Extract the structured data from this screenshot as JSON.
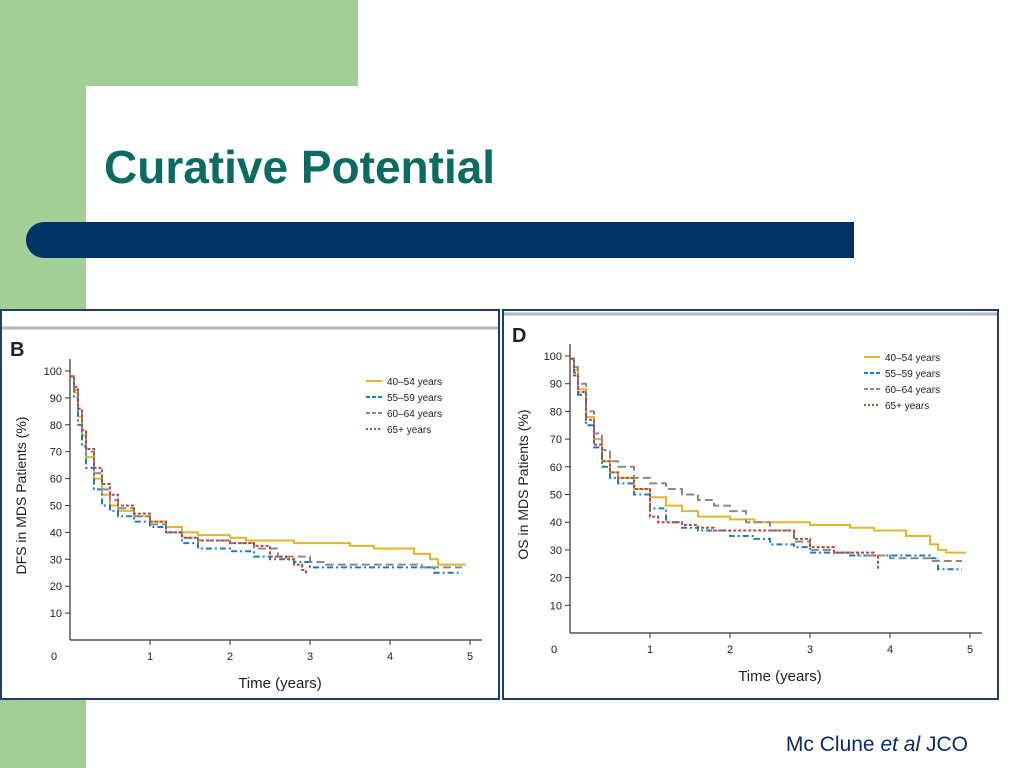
{
  "slide": {
    "title": "Curative Potential",
    "citation_author": "Mc Clune",
    "citation_etal": "et al",
    "citation_journal": "JCO"
  },
  "colors": {
    "title": "#0b6b62",
    "rule": "#003366",
    "accent_green": "#a2cf96",
    "citation": "#0a2a6e"
  },
  "chart_data": [
    {
      "type": "line",
      "panel_label": "B",
      "xlabel": "Time (years)",
      "ylabel": "DFS in MDS Patients (%)",
      "xlim": [
        0,
        5
      ],
      "ylim": [
        0,
        100
      ],
      "xticks": [
        0,
        1,
        2,
        3,
        4,
        5
      ],
      "yticks": [
        10,
        20,
        30,
        40,
        50,
        60,
        70,
        80,
        90,
        100
      ],
      "legend_position": "top-right",
      "series": [
        {
          "name": "40–54 years",
          "color": "#e3b52b",
          "dash": "solid",
          "points": [
            [
              0,
              98
            ],
            [
              0.05,
              92
            ],
            [
              0.1,
              83
            ],
            [
              0.15,
              76
            ],
            [
              0.2,
              68
            ],
            [
              0.3,
              60
            ],
            [
              0.4,
              54
            ],
            [
              0.5,
              50
            ],
            [
              0.6,
              48
            ],
            [
              0.8,
              46
            ],
            [
              1.0,
              44
            ],
            [
              1.2,
              42
            ],
            [
              1.4,
              40
            ],
            [
              1.6,
              39
            ],
            [
              2.0,
              38
            ],
            [
              2.2,
              37
            ],
            [
              2.6,
              37
            ],
            [
              2.8,
              36
            ],
            [
              3.5,
              35
            ],
            [
              3.8,
              34
            ],
            [
              4.3,
              32
            ],
            [
              4.5,
              30
            ],
            [
              4.6,
              28
            ],
            [
              4.95,
              28
            ]
          ]
        },
        {
          "name": "55–59 years",
          "color": "#1c7cc0",
          "dash": "6,3,2,3",
          "points": [
            [
              0,
              98
            ],
            [
              0.05,
              90
            ],
            [
              0.1,
              80
            ],
            [
              0.15,
              72
            ],
            [
              0.2,
              64
            ],
            [
              0.3,
              56
            ],
            [
              0.4,
              50
            ],
            [
              0.5,
              48
            ],
            [
              0.6,
              46
            ],
            [
              0.8,
              44
            ],
            [
              1.0,
              42
            ],
            [
              1.2,
              40
            ],
            [
              1.4,
              36
            ],
            [
              1.6,
              34
            ],
            [
              2.0,
              33
            ],
            [
              2.3,
              31
            ],
            [
              2.5,
              30
            ],
            [
              2.8,
              29
            ],
            [
              3.0,
              27
            ],
            [
              3.5,
              27
            ],
            [
              4.0,
              27
            ],
            [
              4.5,
              27
            ],
            [
              4.55,
              25
            ],
            [
              4.9,
              25
            ]
          ]
        },
        {
          "name": "60–64 years",
          "color": "#8a8a8a",
          "dash": "8,4",
          "points": [
            [
              0,
              98
            ],
            [
              0.05,
              93
            ],
            [
              0.1,
              85
            ],
            [
              0.15,
              77
            ],
            [
              0.2,
              70
            ],
            [
              0.3,
              62
            ],
            [
              0.4,
              56
            ],
            [
              0.5,
              52
            ],
            [
              0.6,
              49
            ],
            [
              0.8,
              46
            ],
            [
              1.0,
              43
            ],
            [
              1.2,
              40
            ],
            [
              1.4,
              38
            ],
            [
              1.6,
              37
            ],
            [
              2.0,
              36
            ],
            [
              2.3,
              34
            ],
            [
              2.6,
              31
            ],
            [
              3.0,
              29
            ],
            [
              3.2,
              28
            ],
            [
              3.8,
              28
            ],
            [
              4.4,
              27
            ],
            [
              4.9,
              27
            ]
          ]
        },
        {
          "name": "65+ years",
          "color": "#b04d40",
          "dash": "3,2",
          "points": [
            [
              0,
              98
            ],
            [
              0.05,
              94
            ],
            [
              0.1,
              86
            ],
            [
              0.15,
              78
            ],
            [
              0.2,
              71
            ],
            [
              0.3,
              64
            ],
            [
              0.4,
              58
            ],
            [
              0.5,
              54
            ],
            [
              0.6,
              50
            ],
            [
              0.8,
              47
            ],
            [
              1.0,
              44
            ],
            [
              1.2,
              40
            ],
            [
              1.4,
              38
            ],
            [
              1.6,
              37
            ],
            [
              2.0,
              36
            ],
            [
              2.3,
              35
            ],
            [
              2.5,
              31
            ],
            [
              2.7,
              30
            ],
            [
              2.8,
              28
            ],
            [
              2.9,
              26
            ],
            [
              2.95,
              24
            ]
          ]
        }
      ]
    },
    {
      "type": "line",
      "panel_label": "D",
      "xlabel": "Time (years)",
      "ylabel": "OS in MDS Patients (%)",
      "xlim": [
        0,
        5
      ],
      "ylim": [
        0,
        100
      ],
      "xticks": [
        0,
        1,
        2,
        3,
        4,
        5
      ],
      "yticks": [
        10,
        20,
        30,
        40,
        50,
        60,
        70,
        80,
        90,
        100
      ],
      "legend_position": "top-right",
      "series": [
        {
          "name": "40–54 years",
          "color": "#e3b52b",
          "dash": "solid",
          "points": [
            [
              0,
              99
            ],
            [
              0.05,
              95
            ],
            [
              0.1,
              88
            ],
            [
              0.2,
              78
            ],
            [
              0.3,
              70
            ],
            [
              0.4,
              62
            ],
            [
              0.5,
              58
            ],
            [
              0.6,
              56
            ],
            [
              0.8,
              52
            ],
            [
              1.0,
              49
            ],
            [
              1.2,
              46
            ],
            [
              1.4,
              44
            ],
            [
              1.6,
              42
            ],
            [
              2.0,
              41
            ],
            [
              2.3,
              40
            ],
            [
              2.6,
              40
            ],
            [
              3.0,
              39
            ],
            [
              3.5,
              38
            ],
            [
              3.8,
              37
            ],
            [
              4.2,
              35
            ],
            [
              4.5,
              32
            ],
            [
              4.6,
              30
            ],
            [
              4.7,
              29
            ],
            [
              4.95,
              29
            ]
          ]
        },
        {
          "name": "55–59 years",
          "color": "#1c7cc0",
          "dash": "6,3,2,3",
          "points": [
            [
              0,
              99
            ],
            [
              0.05,
              94
            ],
            [
              0.1,
              86
            ],
            [
              0.2,
              75
            ],
            [
              0.3,
              67
            ],
            [
              0.4,
              60
            ],
            [
              0.5,
              56
            ],
            [
              0.6,
              54
            ],
            [
              0.8,
              50
            ],
            [
              1.0,
              45
            ],
            [
              1.2,
              40
            ],
            [
              1.4,
              38
            ],
            [
              1.6,
              37
            ],
            [
              2.0,
              35
            ],
            [
              2.3,
              34
            ],
            [
              2.5,
              32
            ],
            [
              2.8,
              31
            ],
            [
              3.0,
              29
            ],
            [
              3.5,
              28
            ],
            [
              4.0,
              28
            ],
            [
              4.5,
              27
            ],
            [
              4.6,
              23
            ],
            [
              4.9,
              23
            ]
          ]
        },
        {
          "name": "60–64 years",
          "color": "#8a8a8a",
          "dash": "8,4",
          "points": [
            [
              0,
              99
            ],
            [
              0.05,
              96
            ],
            [
              0.1,
              90
            ],
            [
              0.2,
              80
            ],
            [
              0.3,
              72
            ],
            [
              0.4,
              66
            ],
            [
              0.5,
              62
            ],
            [
              0.6,
              60
            ],
            [
              0.8,
              56
            ],
            [
              1.0,
              54
            ],
            [
              1.2,
              52
            ],
            [
              1.4,
              50
            ],
            [
              1.6,
              48
            ],
            [
              1.8,
              46
            ],
            [
              2.0,
              44
            ],
            [
              2.2,
              40
            ],
            [
              2.5,
              37
            ],
            [
              2.8,
              33
            ],
            [
              3.0,
              30
            ],
            [
              3.3,
              29
            ],
            [
              3.6,
              28
            ],
            [
              4.0,
              27
            ],
            [
              4.5,
              26
            ],
            [
              4.9,
              26
            ]
          ]
        },
        {
          "name": "65+ years",
          "color": "#b04d40",
          "dash": "3,2",
          "points": [
            [
              0,
              99
            ],
            [
              0.05,
              93
            ],
            [
              0.1,
              87
            ],
            [
              0.2,
              77
            ],
            [
              0.3,
              68
            ],
            [
              0.4,
              62
            ],
            [
              0.5,
              58
            ],
            [
              0.6,
              56
            ],
            [
              0.8,
              52
            ],
            [
              1.0,
              42
            ],
            [
              1.1,
              40
            ],
            [
              1.4,
              39
            ],
            [
              1.6,
              38
            ],
            [
              1.8,
              37
            ],
            [
              2.2,
              37
            ],
            [
              2.6,
              37
            ],
            [
              2.8,
              34
            ],
            [
              3.0,
              31
            ],
            [
              3.3,
              29
            ],
            [
              3.6,
              29
            ],
            [
              3.8,
              28
            ],
            [
              3.85,
              23
            ]
          ]
        }
      ]
    }
  ]
}
